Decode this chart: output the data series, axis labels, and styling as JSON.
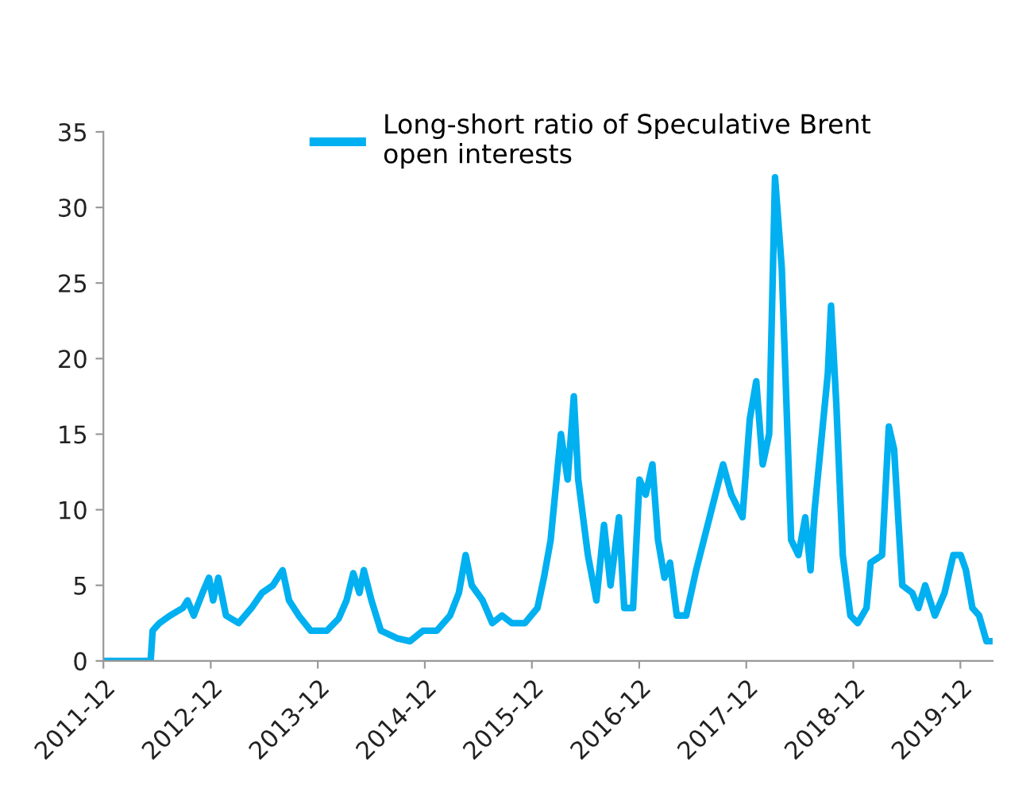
{
  "chart_data": {
    "type": "line",
    "x": [
      "2011-12-01",
      "2012-05-10",
      "2012-05-17",
      "2012-06-09",
      "2012-07-15",
      "2012-08-28",
      "2012-09-13",
      "2012-10-04",
      "2012-11-03",
      "2012-11-25",
      "2012-12-09",
      "2012-12-27",
      "2013-01-22",
      "2013-03-06",
      "2013-04-19",
      "2013-05-25",
      "2013-07-01",
      "2013-08-03",
      "2013-08-25",
      "2013-09-27",
      "2013-11-07",
      "2014-01-01",
      "2014-02-10",
      "2014-03-09",
      "2014-04-01",
      "2014-04-22",
      "2014-05-07",
      "2014-06-02",
      "2014-07-04",
      "2014-08-28",
      "2014-10-11",
      "2014-11-25",
      "2015-01-11",
      "2015-02-25",
      "2015-03-27",
      "2015-04-19",
      "2015-05-10",
      "2015-06-16",
      "2015-07-19",
      "2015-08-21",
      "2015-09-23",
      "2015-11-07",
      "2015-12-20",
      "2016-01-11",
      "2016-02-03",
      "2016-03-09",
      "2016-04-01",
      "2016-04-22",
      "2016-05-07",
      "2016-06-09",
      "2016-07-08",
      "2016-08-03",
      "2016-08-25",
      "2016-09-23",
      "2016-10-11",
      "2016-11-10",
      "2016-12-02",
      "2016-12-23",
      "2017-01-15",
      "2017-02-03",
      "2017-02-25",
      "2017-03-16",
      "2017-04-08",
      "2017-05-10",
      "2017-06-13",
      "2017-07-29",
      "2017-09-13",
      "2017-10-11",
      "2017-11-18",
      "2017-12-13",
      "2018-01-04",
      "2018-01-26",
      "2018-02-17",
      "2018-03-09",
      "2018-04-01",
      "2018-05-03",
      "2018-05-28",
      "2018-06-20",
      "2018-07-08",
      "2018-07-22",
      "2018-08-21",
      "2018-09-05",
      "2018-09-16",
      "2018-10-04",
      "2018-10-26",
      "2018-11-21",
      "2018-12-16",
      "2019-01-15",
      "2019-01-29",
      "2019-03-09",
      "2019-04-01",
      "2019-04-19",
      "2019-05-17",
      "2019-06-20",
      "2019-07-11",
      "2019-08-03",
      "2019-09-05",
      "2019-10-08",
      "2019-11-07",
      "2019-12-02",
      "2019-12-20",
      "2020-01-11",
      "2020-02-03",
      "2020-02-28",
      "2020-03-13"
    ],
    "series": [
      {
        "name": "Long-short ratio of Speculative Brent\nopen interests",
        "color": "#00b0f0",
        "values": [
          0,
          0,
          2,
          2.5,
          3,
          3.5,
          4,
          3,
          4.5,
          5.5,
          4,
          5.5,
          3,
          2.5,
          3.5,
          4.5,
          5,
          6,
          4,
          3,
          2,
          2,
          2.8,
          4,
          5.8,
          4.5,
          6,
          4,
          2,
          1.5,
          1.3,
          2,
          2,
          3,
          4.5,
          7,
          5,
          4,
          2.5,
          3,
          2.5,
          2.5,
          3.5,
          5.5,
          8,
          15,
          12,
          17.5,
          12,
          7,
          4,
          9,
          5,
          9.5,
          3.5,
          3.5,
          12,
          11,
          13,
          8,
          5.5,
          6.5,
          3,
          3,
          6,
          9.5,
          13,
          11,
          9.5,
          16,
          18.5,
          13,
          15,
          32,
          26,
          8,
          7,
          9.5,
          6,
          10,
          16,
          19,
          23.5,
          17,
          7,
          3,
          2.5,
          3.5,
          6.5,
          7,
          15.5,
          14,
          5,
          4.5,
          3.5,
          5,
          3,
          4.5,
          7,
          7,
          6,
          3.5,
          3,
          1.3,
          1.3
        ]
      }
    ],
    "xlim": [
      "2011-12-01",
      "2020-03-20"
    ],
    "xticks": [
      "2011-12",
      "2012-12",
      "2013-12",
      "2014-12",
      "2015-12",
      "2016-12",
      "2017-12",
      "2018-12",
      "2019-12"
    ],
    "ylim": [
      0,
      35
    ],
    "yticks": [
      0,
      5,
      10,
      15,
      20,
      25,
      30,
      35
    ],
    "grid": false,
    "legend": "top",
    "marker": "none",
    "line_style": "solid"
  }
}
